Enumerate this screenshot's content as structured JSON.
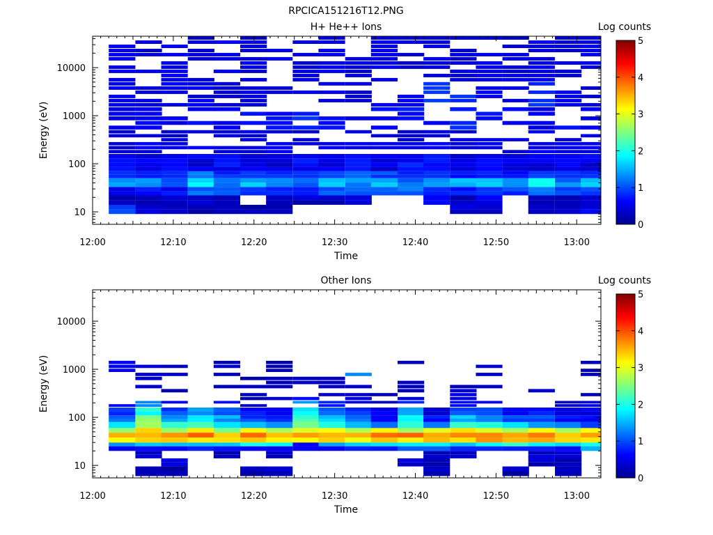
{
  "figure_title": "RPCICA151216T12.PNG",
  "chart_data": [
    {
      "type": "heatmap",
      "title": "H+ He++ Ions",
      "xlabel": "Time",
      "ylabel": "Energy (eV)",
      "x_ticks": [
        "12:00",
        "12:10",
        "12:20",
        "12:30",
        "12:40",
        "12:50",
        "13:00"
      ],
      "x_range_minutes": [
        0,
        63
      ],
      "y_scale": "log",
      "y_ticks": [
        {
          "value": 10,
          "label": "10"
        },
        {
          "value": 100,
          "label": "100"
        },
        {
          "value": 1000,
          "label": "1000"
        },
        {
          "value": 10000,
          "label": "10000"
        }
      ],
      "y_range": [
        5.5,
        45000
      ],
      "colorbar": {
        "label": "Log counts",
        "range": [
          0,
          5
        ],
        "ticks": [
          "0",
          "1",
          "2",
          "3",
          "4",
          "5"
        ]
      },
      "time_bins_start_minutes": [
        2,
        5.3,
        8.5,
        11.8,
        15,
        18.3,
        21.5,
        24.8,
        28,
        31.3,
        34.5,
        37.8,
        41,
        44.3,
        47.5,
        50.8,
        54,
        57.3,
        60.5
      ],
      "bands": [
        {
          "e_min": 9,
          "e_max": 14,
          "levels": [
            0.9,
            0.3,
            0.3,
            0.3,
            0.2,
            0.2,
            0.2,
            null,
            null,
            null,
            null,
            null,
            null,
            0.4,
            0.3,
            null,
            0.4,
            0.2,
            0.5
          ]
        },
        {
          "e_min": 14,
          "e_max": 22,
          "levels": [
            0.3,
            0.3,
            0.3,
            0.3,
            0.3,
            null,
            0.3,
            0.3,
            0.3,
            0.3,
            null,
            null,
            0.6,
            0.3,
            0.5,
            null,
            0.3,
            0.3,
            0.4
          ]
        },
        {
          "e_min": 22,
          "e_max": 33,
          "levels": [
            0.4,
            0.8,
            0.6,
            1.1,
            0.9,
            0.9,
            0.7,
            0.9,
            1.0,
            1.1,
            1.0,
            1.1,
            0.8,
            0.7,
            1.0,
            0.9,
            1.1,
            0.9,
            1.0
          ]
        },
        {
          "e_min": 33,
          "e_max": 50,
          "levels": [
            1.3,
            1.4,
            1.1,
            1.7,
            1.3,
            1.5,
            1.2,
            1.2,
            1.5,
            1.3,
            1.6,
            1.1,
            1.3,
            1.5,
            1.7,
            1.2,
            1.8,
            1.2,
            1.5
          ]
        },
        {
          "e_min": 50,
          "e_max": 70,
          "levels": [
            1.0,
            0.9,
            0.7,
            1.1,
            0.9,
            1.0,
            0.8,
            0.9,
            1.0,
            1.0,
            0.9,
            0.9,
            1.0,
            0.8,
            0.9,
            0.8,
            0.9,
            0.8,
            0.9
          ]
        },
        {
          "e_min": 70,
          "e_max": 160,
          "levels": [
            0.6,
            0.5,
            0.6,
            0.5,
            0.6,
            0.5,
            0.4,
            0.6,
            0.5,
            0.6,
            0.5,
            0.7,
            0.6,
            0.5,
            0.6,
            0.5,
            0.5,
            0.6,
            0.5
          ]
        },
        {
          "e_min": 160,
          "e_max": 500,
          "levels": [
            0.5,
            0.6,
            0.5,
            0.6,
            0.6,
            0.5,
            0.6,
            0.5,
            0.6,
            0.5,
            0.6,
            0.5,
            0.6,
            0.5,
            0.6,
            0.5,
            0.6,
            0.5,
            0.6
          ]
        },
        {
          "e_min": 500,
          "e_max": 1500,
          "levels": [
            0.6,
            0.7,
            0.6,
            0.7,
            0.6,
            0.8,
            0.7,
            0.9,
            0.7,
            0.6,
            0.7,
            0.8,
            0.7,
            0.9,
            0.8,
            0.7,
            0.6,
            0.7,
            0.6
          ]
        },
        {
          "e_min": 1500,
          "e_max": 5000,
          "levels": [
            0.6,
            0.5,
            0.6,
            0.6,
            0.5,
            0.6,
            0.5,
            0.6,
            0.6,
            0.5,
            0.6,
            0.6,
            1.0,
            0.9,
            0.6,
            0.5,
            0.9,
            0.6,
            0.5
          ]
        },
        {
          "e_min": 5000,
          "e_max": 45000,
          "levels": [
            0.6,
            0.5,
            0.6,
            0.5,
            0.6,
            0.5,
            0.6,
            0.5,
            0.6,
            0.5,
            0.6,
            0.5,
            0.6,
            0.5,
            0.6,
            0.5,
            0.6,
            0.5,
            0.6
          ]
        }
      ]
    },
    {
      "type": "heatmap",
      "title": "Other Ions",
      "xlabel": "Time",
      "ylabel": "Energy (eV)",
      "x_ticks": [
        "12:00",
        "12:10",
        "12:20",
        "12:30",
        "12:40",
        "12:50",
        "13:00"
      ],
      "x_range_minutes": [
        0,
        63
      ],
      "y_scale": "log",
      "y_ticks": [
        {
          "value": 10,
          "label": "10"
        },
        {
          "value": 100,
          "label": "100"
        },
        {
          "value": 1000,
          "label": "1000"
        },
        {
          "value": 10000,
          "label": "10000"
        }
      ],
      "y_range": [
        5.5,
        45000
      ],
      "colorbar": {
        "label": "Log counts",
        "range": [
          0,
          5
        ],
        "ticks": [
          "0",
          "1",
          "2",
          "3",
          "4",
          "5"
        ]
      },
      "time_bins_start_minutes": [
        2,
        5.3,
        8.5,
        11.8,
        15,
        18.3,
        21.5,
        24.8,
        28,
        31.3,
        34.5,
        37.8,
        41,
        44.3,
        47.5,
        50.8,
        54,
        57.3,
        60.5
      ],
      "bands": [
        {
          "e_min": 6,
          "e_max": 9.5,
          "levels": [
            null,
            0.2,
            0.2,
            null,
            null,
            0.2,
            0.2,
            null,
            null,
            null,
            null,
            null,
            0.3,
            null,
            null,
            0.2,
            null,
            0.2,
            null
          ]
        },
        {
          "e_min": 9.5,
          "e_max": 14,
          "levels": [
            null,
            null,
            0.3,
            null,
            null,
            null,
            null,
            null,
            null,
            null,
            null,
            0.3,
            0.3,
            null,
            null,
            null,
            0.3,
            0.3,
            null
          ]
        },
        {
          "e_min": 14,
          "e_max": 20,
          "levels": [
            null,
            0.3,
            null,
            null,
            0.3,
            null,
            0.3,
            null,
            null,
            null,
            null,
            null,
            0.3,
            0.3,
            null,
            null,
            0.4,
            0.3,
            null
          ]
        },
        {
          "e_min": 20,
          "e_max": 25,
          "levels": [
            0.5,
            0.7,
            0.6,
            0.8,
            0.6,
            0.7,
            0.7,
            0.5,
            0.6,
            0.8,
            0.9,
            1.0,
            0.9,
            0.7,
            0.8,
            0.9,
            0.9,
            0.8,
            1.6
          ]
        },
        {
          "e_min": 25,
          "e_max": 30,
          "levels": [
            1.5,
            1.6,
            1.5,
            1.7,
            1.6,
            1.8,
            1.9,
            0.6,
            1.5,
            1.7,
            1.8,
            1.9,
            1.7,
            1.6,
            1.9,
            2.0,
            1.9,
            1.8,
            2.0
          ]
        },
        {
          "e_min": 30,
          "e_max": 38,
          "levels": [
            3.2,
            3.4,
            3.5,
            3.2,
            3.3,
            3.4,
            3.3,
            3.3,
            3.4,
            3.2,
            3.5,
            3.2,
            3.3,
            3.3,
            3.5,
            3.3,
            3.4,
            3.2,
            3.3
          ]
        },
        {
          "e_min": 38,
          "e_max": 48,
          "levels": [
            3.4,
            3.6,
            3.5,
            3.8,
            3.5,
            3.7,
            3.4,
            3.5,
            3.6,
            3.5,
            3.9,
            3.8,
            3.4,
            3.6,
            3.8,
            3.4,
            3.9,
            3.3,
            3.5
          ]
        },
        {
          "e_min": 48,
          "e_max": 60,
          "levels": [
            2.6,
            3.2,
            2.8,
            3.4,
            2.6,
            3.0,
            2.7,
            2.9,
            3.1,
            2.8,
            3.2,
            2.7,
            2.9,
            3.1,
            2.8,
            2.6,
            3.0,
            2.8,
            3.0
          ]
        },
        {
          "e_min": 60,
          "e_max": 80,
          "levels": [
            1.8,
            2.8,
            2.0,
            2.2,
            1.8,
            1.6,
            1.5,
            2.4,
            1.9,
            1.6,
            1.3,
            2.2,
            1.2,
            2.0,
            2.1,
            1.8,
            1.4,
            1.3,
            1.0
          ]
        },
        {
          "e_min": 80,
          "e_max": 110,
          "levels": [
            1.2,
            2.6,
            1.3,
            1.8,
            1.4,
            0.9,
            0.7,
            2.2,
            1.6,
            1.1,
            0.6,
            2.0,
            0.7,
            1.5,
            1.3,
            0.9,
            1.0,
            0.6,
            0.7
          ]
        },
        {
          "e_min": 110,
          "e_max": 160,
          "levels": [
            0.9,
            2.0,
            1.0,
            1.3,
            1.1,
            0.7,
            0.5,
            1.8,
            1.2,
            0.8,
            0.5,
            1.4,
            0.5,
            1.1,
            0.9,
            0.6,
            0.7,
            0.5,
            0.5
          ]
        },
        {
          "e_min": 160,
          "e_max": 220,
          "levels": [
            0.6,
            1.4,
            0.7,
            null,
            0.8,
            0.4,
            0.5,
            1.5,
            0.8,
            0.6,
            0.4,
            0.9,
            null,
            0.7,
            0.6,
            0.5,
            null,
            0.4,
            0.5
          ]
        },
        {
          "e_min": 220,
          "e_max": 320,
          "levels": [
            null,
            null,
            null,
            null,
            null,
            0.3,
            0.4,
            0.8,
            0.5,
            0.4,
            0.3,
            0.5,
            null,
            0.5,
            null,
            null,
            null,
            null,
            0.3
          ]
        },
        {
          "e_min": 320,
          "e_max": 700,
          "levels": [
            null,
            0.4,
            0.3,
            null,
            0.3,
            0.3,
            0.3,
            0.3,
            0.3,
            0.4,
            0.3,
            0.3,
            null,
            0.4,
            0.4,
            null,
            0.4,
            null,
            null
          ]
        },
        {
          "e_min": 700,
          "e_max": 1500,
          "levels": [
            0.6,
            0.4,
            0.4,
            null,
            0.3,
            null,
            0.3,
            null,
            null,
            1.4,
            null,
            0.3,
            null,
            null,
            0.4,
            null,
            null,
            null,
            0.3
          ]
        }
      ]
    }
  ]
}
